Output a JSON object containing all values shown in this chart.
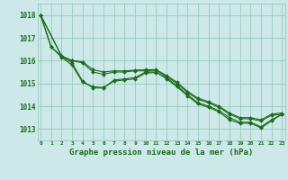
{
  "title": "Graphe pression niveau de la mer (hPa)",
  "background_color": "#cce8e8",
  "grid_color": "#99ccbb",
  "line_color": "#1a6b1a",
  "marker_color": "#1a6b1a",
  "x_ticks": [
    0,
    1,
    2,
    3,
    4,
    5,
    6,
    7,
    8,
    9,
    10,
    11,
    12,
    13,
    14,
    15,
    16,
    17,
    18,
    19,
    20,
    21,
    22,
    23
  ],
  "y_ticks": [
    1013,
    1014,
    1015,
    1016,
    1017,
    1018
  ],
  "ylim": [
    1012.5,
    1018.5
  ],
  "xlim": [
    -0.3,
    23.3
  ],
  "lines": [
    [
      1018.0,
      1016.6,
      1016.2,
      1015.9,
      1015.1,
      1014.8,
      1014.8,
      1015.15,
      1015.2,
      1015.25,
      1015.5,
      1015.5,
      1015.2,
      1014.85,
      1014.45,
      1014.1,
      1013.95,
      1013.75,
      1013.4,
      1013.25,
      1013.25,
      1013.05,
      1013.35,
      1013.65
    ],
    [
      1018.0,
      1016.6,
      1016.15,
      1015.8,
      1015.05,
      1014.85,
      1014.82,
      1015.1,
      1015.15,
      1015.2,
      1015.45,
      1015.48,
      1015.25,
      1014.9,
      1014.5,
      1014.15,
      1014.0,
      1013.8,
      1013.5,
      1013.3,
      1013.3,
      1013.1,
      1013.4,
      1013.65
    ],
    [
      1018.0,
      null,
      1016.2,
      1016.0,
      1015.95,
      1015.6,
      1015.5,
      1015.55,
      1015.55,
      1015.58,
      1015.6,
      1015.6,
      1015.35,
      1015.05,
      1014.65,
      1014.35,
      1014.2,
      1014.0,
      1013.7,
      1013.5,
      1013.5,
      1013.4,
      1013.65,
      1013.7
    ],
    [
      1018.0,
      null,
      1016.2,
      1016.0,
      1015.9,
      1015.5,
      1015.4,
      1015.5,
      1015.5,
      1015.55,
      1015.55,
      1015.58,
      1015.3,
      1015.0,
      1014.6,
      1014.3,
      1014.15,
      1013.95,
      1013.65,
      1013.45,
      1013.45,
      1013.35,
      1013.6,
      1013.65
    ]
  ]
}
